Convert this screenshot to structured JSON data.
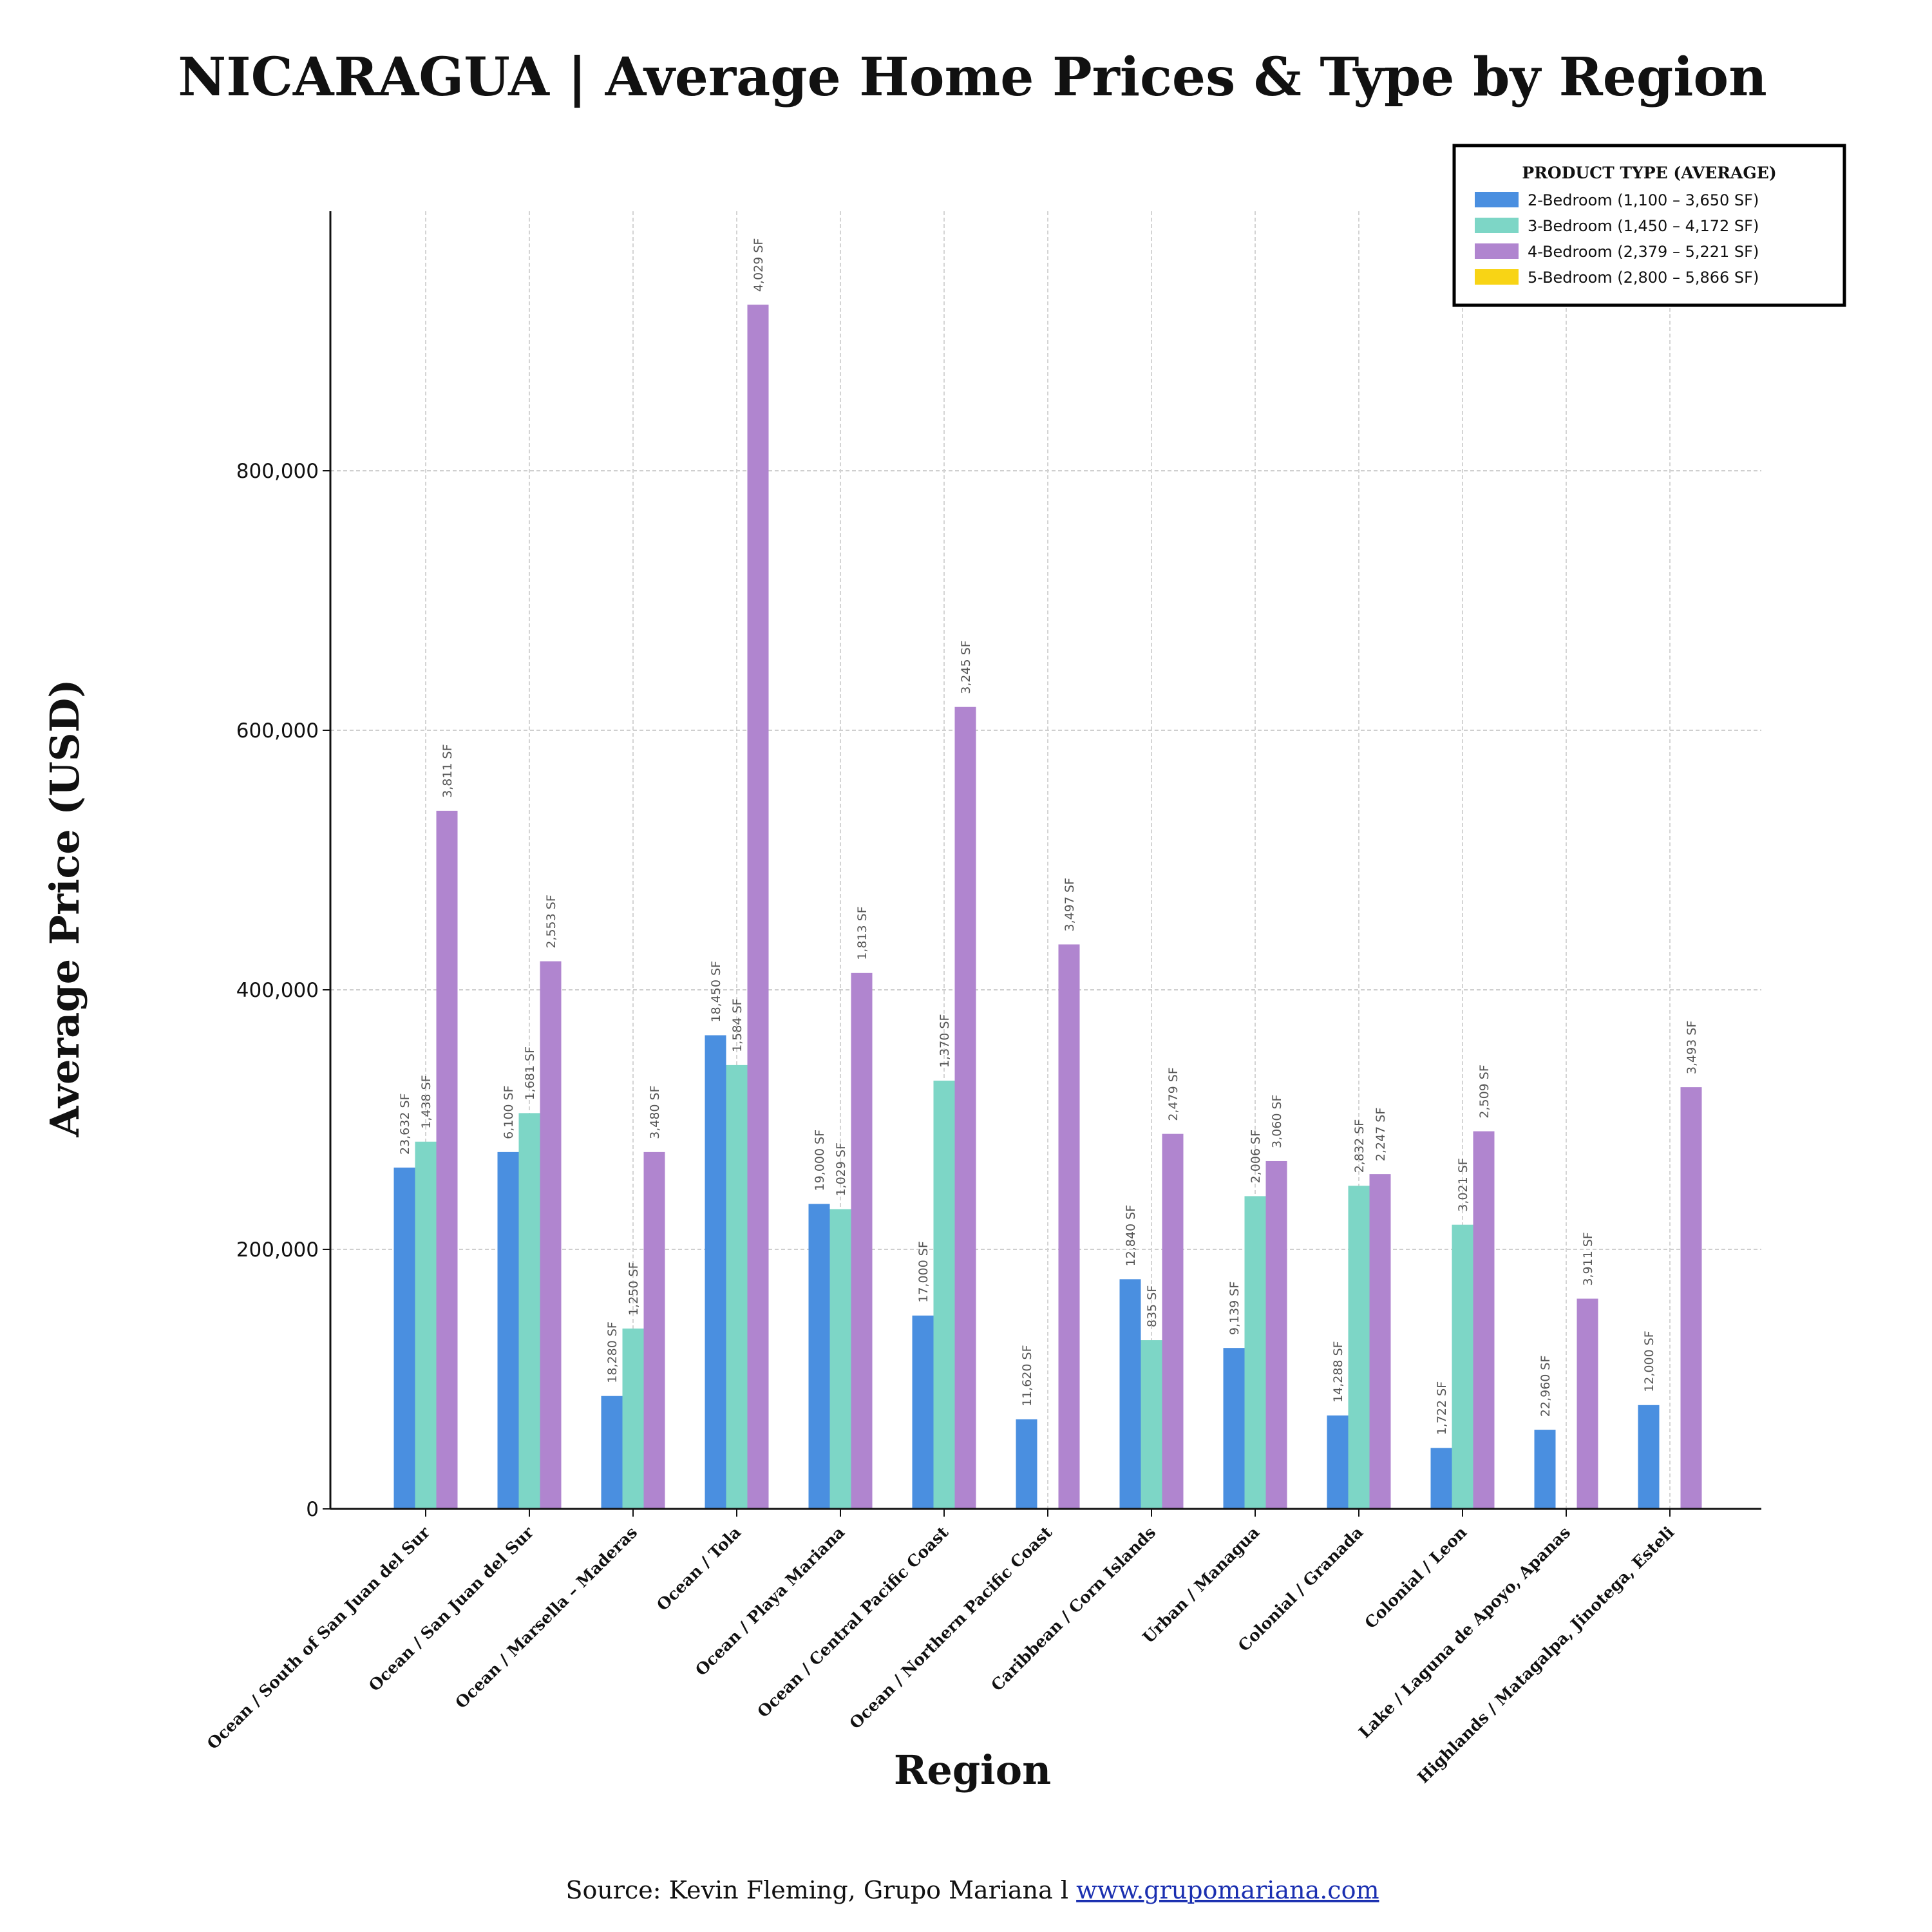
{
  "chart_data": {
    "type": "bar",
    "title": "NICARAGUA | Average Home Prices & Type by Region",
    "xlabel": "Region",
    "ylabel": "Average Price (USD)",
    "ylim": [
      0,
      1000000
    ],
    "yticks": [
      0,
      200000,
      400000,
      600000,
      800000
    ],
    "ytick_labels": [
      "0",
      "200,000",
      "400,000",
      "600,000",
      "800,000"
    ],
    "grid": true,
    "legend_position": "top-right",
    "legend_title": "PRODUCT TYPE (AVERAGE)",
    "categories": [
      "Ocean / South of San Juan del Sur",
      "Ocean / San Juan del Sur",
      "Ocean / Marsella – Maderas",
      "Ocean / Tola",
      "Ocean / Playa Mariana",
      "Ocean / Central Pacific Coast",
      "Ocean / Northern Pacific Coast",
      "Caribbean  / Corn Islands",
      "Urban  / Managua",
      "Colonial  / Granada",
      "Colonial  / Leon",
      "Lake  / Laguna de Apoyo, Apanas",
      "Highlands  / Matagalpa, Jinotega, Esteli"
    ],
    "series": [
      {
        "name": "2-Bedroom (1,100 – 3,650 SF)",
        "color": "#4a8fe0",
        "values": [
          263000,
          275000,
          87000,
          365000,
          235000,
          149000,
          69000,
          177000,
          124000,
          72000,
          47000,
          61000,
          80000
        ],
        "labels": [
          "23,632 SF",
          "6,100 SF",
          "18,280 SF",
          "18,450 SF",
          "19,000 SF",
          "17,000 SF",
          "11,620 SF",
          "12,840 SF",
          "9,139 SF",
          "14,288 SF",
          "1,722 SF",
          "22,960 SF",
          "12,000 SF"
        ]
      },
      {
        "name": "3-Bedroom (1,450 – 4,172 SF)",
        "color": "#7dd6c6",
        "values": [
          283000,
          305000,
          139000,
          342000,
          231000,
          330000,
          null,
          130000,
          241000,
          249000,
          219000,
          null,
          null
        ],
        "labels": [
          "1,438 SF",
          "1,681 SF",
          "1,250 SF",
          "1,584 SF",
          "1,029 SF",
          "1,370 SF",
          "",
          "835 SF",
          "2,006 SF",
          "2,832 SF",
          "3,021 SF",
          "",
          ""
        ]
      },
      {
        "name": "4-Bedroom (2,379 – 5,221 SF)",
        "color": "#b085cf",
        "values": [
          538000,
          422000,
          275000,
          928000,
          413000,
          618000,
          435000,
          289000,
          268000,
          258000,
          291000,
          162000,
          325000
        ],
        "labels": [
          "3,811 SF",
          "2,553 SF",
          "3,480 SF",
          "4,029 SF",
          "1,813 SF",
          "3,245 SF",
          "3,497 SF",
          "2,479 SF",
          "3,060 SF",
          "2,247 SF",
          "2,509 SF",
          "3,911 SF",
          "3,493 SF"
        ]
      },
      {
        "name": "5-Bedroom (2,800 – 5,866 SF)",
        "color": "#f8d415",
        "values": [
          null,
          null,
          null,
          null,
          null,
          null,
          null,
          null,
          null,
          null,
          null,
          null,
          null
        ],
        "labels": [
          "",
          "",
          "",
          "",
          "",
          "",
          "",
          "",
          "",
          "",
          "",
          "",
          ""
        ]
      }
    ]
  },
  "footer": {
    "source_text": "Source: Kevin Fleming, Grupo Mariana l",
    "link_text": "www.grupomariana.com"
  }
}
